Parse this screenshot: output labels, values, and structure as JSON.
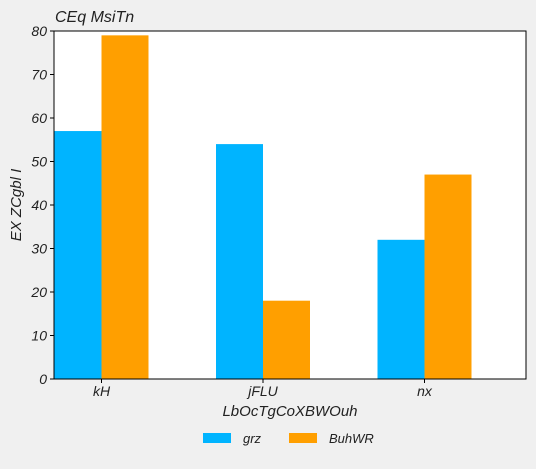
{
  "chart_data": {
    "type": "bar",
    "title": "CEq MsiTn",
    "xlabel": "LbOcTgCoXBWOuh",
    "ylabel": "EX ZCgbl I",
    "categories": [
      "kH",
      "jFLU",
      "nx"
    ],
    "series": [
      {
        "name": "grz",
        "values": [
          57,
          54,
          32
        ],
        "color": "#00b4ff"
      },
      {
        "name": "BuhWR",
        "values": [
          79,
          18,
          47
        ],
        "color": "#ff9f00"
      }
    ],
    "ylim": [
      0,
      80
    ],
    "yticks": [
      0,
      10,
      20,
      30,
      40,
      50,
      60,
      70,
      80
    ],
    "grid": false,
    "legend_position": "bottom-center"
  }
}
